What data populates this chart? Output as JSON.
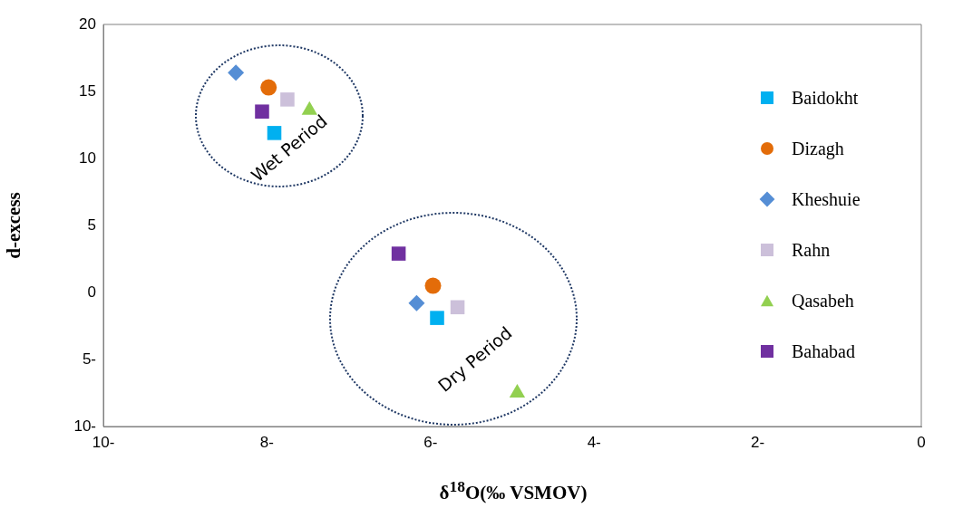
{
  "chart_data": {
    "type": "scatter",
    "xlabel": "δ$^{18}$O(‰ VSMOV)",
    "ylabel": "d-excess",
    "xlim": [
      -10,
      0
    ],
    "xticks": [
      {
        "value": -10,
        "label": "10-"
      },
      {
        "value": -8,
        "label": "8-"
      },
      {
        "value": -6,
        "label": "6-"
      },
      {
        "value": -4,
        "label": "4-"
      },
      {
        "value": -2,
        "label": "2-"
      },
      0
    ],
    "ylim": [
      -10,
      20
    ],
    "yticks": [
      {
        "value": -10,
        "label": "10-"
      },
      {
        "value": -5,
        "label": "5-"
      },
      0,
      5,
      10,
      15,
      20
    ],
    "grid": false,
    "legend": "right",
    "annotations": [
      "Wet Period",
      "Dry Period"
    ],
    "series": [
      {
        "name": "Baidokht",
        "color": "#00b0f0",
        "marker": "square",
        "x": [
          -7.91,
          -5.92
        ],
        "values": [
          11.9,
          -1.9
        ]
      },
      {
        "name": "Dizagh",
        "color": "#e36c09",
        "marker": "circle",
        "x": [
          -7.98,
          -5.97
        ],
        "values": [
          15.3,
          0.5
        ]
      },
      {
        "name": "Kheshuie",
        "color": "#558ed5",
        "marker": "diamond",
        "x": [
          -8.38,
          -6.17
        ],
        "values": [
          16.4,
          -0.8
        ]
      },
      {
        "name": "Rahn",
        "color": "#ccc0da",
        "marker": "square",
        "x": [
          -7.75,
          -5.67
        ],
        "values": [
          14.4,
          -1.1
        ]
      },
      {
        "name": "Qasabeh",
        "color": "#92d050",
        "marker": "triangle",
        "x": [
          -7.48,
          -4.94
        ],
        "values": [
          13.6,
          -7.5
        ]
      },
      {
        "name": "Bahabad",
        "color": "#7030a0",
        "marker": "square",
        "x": [
          -8.06,
          -6.39
        ],
        "values": [
          13.5,
          2.9
        ]
      }
    ]
  }
}
